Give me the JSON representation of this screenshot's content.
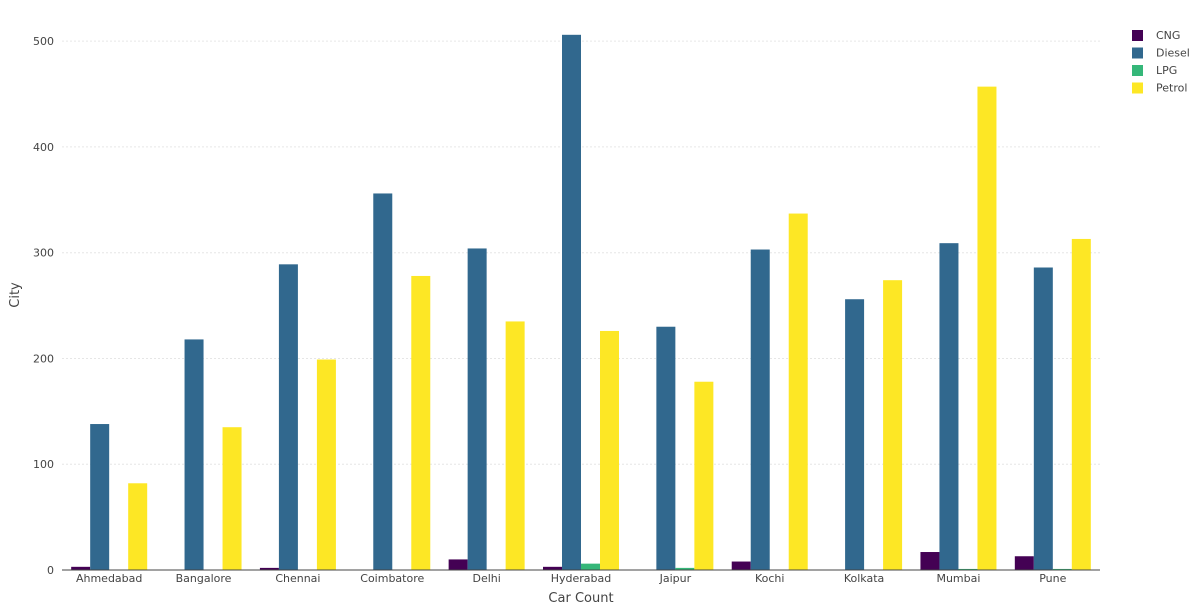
{
  "chart_data": {
    "type": "bar",
    "title": "",
    "xlabel": "Car Count",
    "ylabel": "City",
    "ylim": [
      0,
      520
    ],
    "yticks": [
      0,
      100,
      200,
      300,
      400,
      500
    ],
    "grid": true,
    "legend_position": "top-right",
    "categories": [
      "Ahmedabad",
      "Bangalore",
      "Chennai",
      "Coimbatore",
      "Delhi",
      "Hyderabad",
      "Jaipur",
      "Kochi",
      "Kolkata",
      "Mumbai",
      "Pune"
    ],
    "series": [
      {
        "name": "CNG",
        "color": "#440154",
        "values": [
          3,
          0,
          2,
          0,
          10,
          3,
          0,
          8,
          0,
          17,
          13
        ]
      },
      {
        "name": "Diesel",
        "color": "#31688e",
        "values": [
          138,
          218,
          289,
          356,
          304,
          506,
          230,
          303,
          256,
          309,
          286
        ]
      },
      {
        "name": "LPG",
        "color": "#35b779",
        "values": [
          0,
          0,
          0,
          0,
          0,
          6,
          2,
          0,
          0,
          1,
          1
        ]
      },
      {
        "name": "Petrol",
        "color": "#fde725",
        "values": [
          82,
          135,
          199,
          278,
          235,
          226,
          178,
          337,
          274,
          457,
          313
        ]
      }
    ]
  }
}
